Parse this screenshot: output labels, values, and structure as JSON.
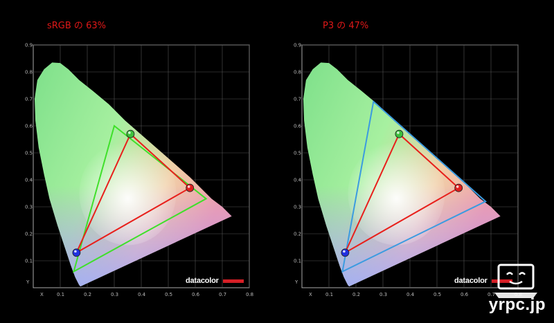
{
  "chart_data": [
    {
      "type": "scatter",
      "title": "sRGB の 63%",
      "xlabel": "X",
      "ylabel": "Y",
      "xticks": [
        "0.1",
        "0.2",
        "0.3",
        "0.4",
        "0.5",
        "0.6",
        "0.7",
        "0.8"
      ],
      "yticks": [
        "0.1",
        "0.2",
        "0.3",
        "0.4",
        "0.5",
        "0.6",
        "0.7",
        "0.8",
        "0.9"
      ],
      "xlim": [
        0.0,
        0.8
      ],
      "ylim": [
        0.0,
        0.9
      ],
      "grid": true,
      "reference_gamut": {
        "color": "#3fe02a",
        "points": [
          [
            0.64,
            0.33
          ],
          [
            0.3,
            0.6
          ],
          [
            0.15,
            0.06
          ]
        ]
      },
      "measured_gamut": {
        "color": "#e8201c",
        "points": [
          [
            0.58,
            0.37
          ],
          [
            0.36,
            0.57
          ],
          [
            0.16,
            0.13
          ]
        ]
      },
      "brand": "datacolor"
    },
    {
      "type": "scatter",
      "title": "P3 の 47%",
      "xlabel": "X",
      "ylabel": "Y",
      "xticks": [
        "0.1",
        "0.2",
        "0.3",
        "0.4",
        "0.5",
        "0.6",
        "0.7",
        "0.8"
      ],
      "yticks": [
        "0.1",
        "0.2",
        "0.3",
        "0.4",
        "0.5",
        "0.6",
        "0.7",
        "0.8",
        "0.9"
      ],
      "xlim": [
        0.0,
        0.8
      ],
      "ylim": [
        0.0,
        0.9
      ],
      "grid": true,
      "reference_gamut": {
        "color": "#3b9be0",
        "points": [
          [
            0.68,
            0.32
          ],
          [
            0.265,
            0.69
          ],
          [
            0.15,
            0.06
          ]
        ]
      },
      "measured_gamut": {
        "color": "#e8201c",
        "points": [
          [
            0.58,
            0.37
          ],
          [
            0.36,
            0.57
          ],
          [
            0.16,
            0.13
          ]
        ]
      },
      "brand": "datacolor"
    }
  ],
  "watermark": "yrpc.jp"
}
